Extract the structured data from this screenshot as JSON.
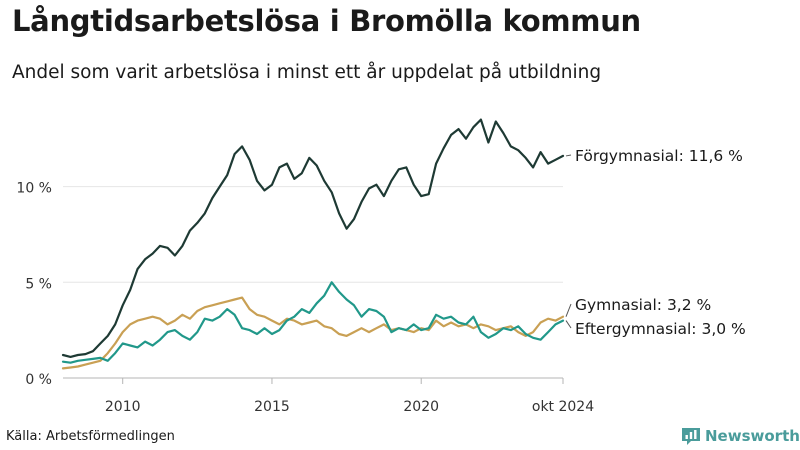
{
  "header": {
    "title": "Långtidsarbetslösa i Bromölla kommun",
    "subtitle": "Andel som varit arbetslösa i minst ett år uppdelat på utbildning"
  },
  "footer": {
    "source": "Källa: Arbetsförmedlingen",
    "brand_name": "Newsworthy",
    "brand_icon": "bar-chart-logo-icon"
  },
  "chart_data": {
    "type": "line",
    "x_axis": {
      "type": "time",
      "range": [
        "2008-01",
        "2024-10"
      ],
      "tick_labels": [
        {
          "x": "2010-01",
          "label": "2010"
        },
        {
          "x": "2015-01",
          "label": "2015"
        },
        {
          "x": "2020-01",
          "label": "2020"
        },
        {
          "x": "2024-10",
          "label": "okt 2024"
        }
      ]
    },
    "y_axis": {
      "range": [
        0,
        14
      ],
      "tick_labels": [
        {
          "y": 0,
          "label": "0 %"
        },
        {
          "y": 5,
          "label": "5 %"
        },
        {
          "y": 10,
          "label": "10 %"
        }
      ]
    },
    "grid": "horizontal",
    "legend": "end-labels",
    "series": [
      {
        "name": "Förgymnasial",
        "end_label": "Förgymnasial: 11,6 %",
        "color": "#1e3a34",
        "points": [
          [
            "2008-01",
            1.2
          ],
          [
            "2008-04",
            1.1
          ],
          [
            "2008-07",
            1.2
          ],
          [
            "2008-10",
            1.25
          ],
          [
            "2009-01",
            1.4
          ],
          [
            "2009-04",
            1.8
          ],
          [
            "2009-07",
            2.2
          ],
          [
            "2009-10",
            2.8
          ],
          [
            "2010-01",
            3.8
          ],
          [
            "2010-04",
            4.6
          ],
          [
            "2010-07",
            5.7
          ],
          [
            "2010-10",
            6.2
          ],
          [
            "2011-01",
            6.5
          ],
          [
            "2011-04",
            6.9
          ],
          [
            "2011-07",
            6.8
          ],
          [
            "2011-10",
            6.4
          ],
          [
            "2012-01",
            6.9
          ],
          [
            "2012-04",
            7.7
          ],
          [
            "2012-07",
            8.1
          ],
          [
            "2012-10",
            8.6
          ],
          [
            "2013-01",
            9.4
          ],
          [
            "2013-04",
            10.0
          ],
          [
            "2013-07",
            10.6
          ],
          [
            "2013-10",
            11.7
          ],
          [
            "2014-01",
            12.1
          ],
          [
            "2014-04",
            11.4
          ],
          [
            "2014-07",
            10.3
          ],
          [
            "2014-10",
            9.8
          ],
          [
            "2015-01",
            10.1
          ],
          [
            "2015-04",
            11.0
          ],
          [
            "2015-07",
            11.2
          ],
          [
            "2015-10",
            10.4
          ],
          [
            "2016-01",
            10.7
          ],
          [
            "2016-04",
            11.5
          ],
          [
            "2016-07",
            11.1
          ],
          [
            "2016-10",
            10.3
          ],
          [
            "2017-01",
            9.7
          ],
          [
            "2017-04",
            8.6
          ],
          [
            "2017-07",
            7.8
          ],
          [
            "2017-10",
            8.3
          ],
          [
            "2018-01",
            9.2
          ],
          [
            "2018-04",
            9.9
          ],
          [
            "2018-07",
            10.1
          ],
          [
            "2018-10",
            9.5
          ],
          [
            "2019-01",
            10.3
          ],
          [
            "2019-04",
            10.9
          ],
          [
            "2019-07",
            11.0
          ],
          [
            "2019-10",
            10.1
          ],
          [
            "2020-01",
            9.5
          ],
          [
            "2020-04",
            9.6
          ],
          [
            "2020-07",
            11.2
          ],
          [
            "2020-10",
            12.0
          ],
          [
            "2021-01",
            12.7
          ],
          [
            "2021-04",
            13.0
          ],
          [
            "2021-07",
            12.5
          ],
          [
            "2021-10",
            13.1
          ],
          [
            "2022-01",
            13.5
          ],
          [
            "2022-04",
            12.3
          ],
          [
            "2022-07",
            13.4
          ],
          [
            "2022-10",
            12.8
          ],
          [
            "2023-01",
            12.1
          ],
          [
            "2023-04",
            11.9
          ],
          [
            "2023-07",
            11.5
          ],
          [
            "2023-10",
            11.0
          ],
          [
            "2024-01",
            11.8
          ],
          [
            "2024-04",
            11.2
          ],
          [
            "2024-07",
            11.4
          ],
          [
            "2024-10",
            11.6
          ]
        ]
      },
      {
        "name": "Gymnasial",
        "end_label": "Gymnasial:  3,2 %",
        "color": "#c9a054",
        "points": [
          [
            "2008-01",
            0.5
          ],
          [
            "2008-04",
            0.55
          ],
          [
            "2008-07",
            0.6
          ],
          [
            "2008-10",
            0.7
          ],
          [
            "2009-01",
            0.8
          ],
          [
            "2009-04",
            0.9
          ],
          [
            "2009-07",
            1.3
          ],
          [
            "2009-10",
            1.8
          ],
          [
            "2010-01",
            2.4
          ],
          [
            "2010-04",
            2.8
          ],
          [
            "2010-07",
            3.0
          ],
          [
            "2010-10",
            3.1
          ],
          [
            "2011-01",
            3.2
          ],
          [
            "2011-04",
            3.1
          ],
          [
            "2011-07",
            2.8
          ],
          [
            "2011-10",
            3.0
          ],
          [
            "2012-01",
            3.3
          ],
          [
            "2012-04",
            3.1
          ],
          [
            "2012-07",
            3.5
          ],
          [
            "2012-10",
            3.7
          ],
          [
            "2013-01",
            3.8
          ],
          [
            "2013-04",
            3.9
          ],
          [
            "2013-07",
            4.0
          ],
          [
            "2013-10",
            4.1
          ],
          [
            "2014-01",
            4.2
          ],
          [
            "2014-04",
            3.6
          ],
          [
            "2014-07",
            3.3
          ],
          [
            "2014-10",
            3.2
          ],
          [
            "2015-01",
            3.0
          ],
          [
            "2015-04",
            2.8
          ],
          [
            "2015-07",
            3.1
          ],
          [
            "2015-10",
            3.0
          ],
          [
            "2016-01",
            2.8
          ],
          [
            "2016-04",
            2.9
          ],
          [
            "2016-07",
            3.0
          ],
          [
            "2016-10",
            2.7
          ],
          [
            "2017-01",
            2.6
          ],
          [
            "2017-04",
            2.3
          ],
          [
            "2017-07",
            2.2
          ],
          [
            "2017-10",
            2.4
          ],
          [
            "2018-01",
            2.6
          ],
          [
            "2018-04",
            2.4
          ],
          [
            "2018-07",
            2.6
          ],
          [
            "2018-10",
            2.8
          ],
          [
            "2019-01",
            2.5
          ],
          [
            "2019-04",
            2.6
          ],
          [
            "2019-07",
            2.5
          ],
          [
            "2019-10",
            2.4
          ],
          [
            "2020-01",
            2.6
          ],
          [
            "2020-04",
            2.5
          ],
          [
            "2020-07",
            3.0
          ],
          [
            "2020-10",
            2.7
          ],
          [
            "2021-01",
            2.9
          ],
          [
            "2021-04",
            2.7
          ],
          [
            "2021-07",
            2.8
          ],
          [
            "2021-10",
            2.6
          ],
          [
            "2022-01",
            2.8
          ],
          [
            "2022-04",
            2.7
          ],
          [
            "2022-07",
            2.5
          ],
          [
            "2022-10",
            2.6
          ],
          [
            "2023-01",
            2.7
          ],
          [
            "2023-04",
            2.4
          ],
          [
            "2023-07",
            2.2
          ],
          [
            "2023-10",
            2.4
          ],
          [
            "2024-01",
            2.9
          ],
          [
            "2024-04",
            3.1
          ],
          [
            "2024-07",
            3.0
          ],
          [
            "2024-10",
            3.2
          ]
        ]
      },
      {
        "name": "Eftergymnasial",
        "end_label": "Eftergymnasial:  3,0 %",
        "color": "#21988a",
        "points": [
          [
            "2008-01",
            0.85
          ],
          [
            "2008-04",
            0.8
          ],
          [
            "2008-07",
            0.9
          ],
          [
            "2008-10",
            0.95
          ],
          [
            "2009-01",
            1.0
          ],
          [
            "2009-04",
            1.05
          ],
          [
            "2009-07",
            0.9
          ],
          [
            "2009-10",
            1.3
          ],
          [
            "2010-01",
            1.8
          ],
          [
            "2010-04",
            1.7
          ],
          [
            "2010-07",
            1.6
          ],
          [
            "2010-10",
            1.9
          ],
          [
            "2011-01",
            1.7
          ],
          [
            "2011-04",
            2.0
          ],
          [
            "2011-07",
            2.4
          ],
          [
            "2011-10",
            2.5
          ],
          [
            "2012-01",
            2.2
          ],
          [
            "2012-04",
            2.0
          ],
          [
            "2012-07",
            2.4
          ],
          [
            "2012-10",
            3.1
          ],
          [
            "2013-01",
            3.0
          ],
          [
            "2013-04",
            3.2
          ],
          [
            "2013-07",
            3.6
          ],
          [
            "2013-10",
            3.3
          ],
          [
            "2014-01",
            2.6
          ],
          [
            "2014-04",
            2.5
          ],
          [
            "2014-07",
            2.3
          ],
          [
            "2014-10",
            2.6
          ],
          [
            "2015-01",
            2.3
          ],
          [
            "2015-04",
            2.5
          ],
          [
            "2015-07",
            3.0
          ],
          [
            "2015-10",
            3.2
          ],
          [
            "2016-01",
            3.6
          ],
          [
            "2016-04",
            3.4
          ],
          [
            "2016-07",
            3.9
          ],
          [
            "2016-10",
            4.3
          ],
          [
            "2017-01",
            5.0
          ],
          [
            "2017-04",
            4.5
          ],
          [
            "2017-07",
            4.1
          ],
          [
            "2017-10",
            3.8
          ],
          [
            "2018-01",
            3.2
          ],
          [
            "2018-04",
            3.6
          ],
          [
            "2018-07",
            3.5
          ],
          [
            "2018-10",
            3.2
          ],
          [
            "2019-01",
            2.4
          ],
          [
            "2019-04",
            2.6
          ],
          [
            "2019-07",
            2.5
          ],
          [
            "2019-10",
            2.8
          ],
          [
            "2020-01",
            2.5
          ],
          [
            "2020-04",
            2.6
          ],
          [
            "2020-07",
            3.3
          ],
          [
            "2020-10",
            3.1
          ],
          [
            "2021-01",
            3.2
          ],
          [
            "2021-04",
            2.9
          ],
          [
            "2021-07",
            2.8
          ],
          [
            "2021-10",
            3.2
          ],
          [
            "2022-01",
            2.4
          ],
          [
            "2022-04",
            2.1
          ],
          [
            "2022-07",
            2.3
          ],
          [
            "2022-10",
            2.6
          ],
          [
            "2023-01",
            2.5
          ],
          [
            "2023-04",
            2.7
          ],
          [
            "2023-07",
            2.3
          ],
          [
            "2023-10",
            2.1
          ],
          [
            "2024-01",
            2.0
          ],
          [
            "2024-04",
            2.4
          ],
          [
            "2024-07",
            2.8
          ],
          [
            "2024-10",
            3.0
          ]
        ]
      }
    ]
  }
}
